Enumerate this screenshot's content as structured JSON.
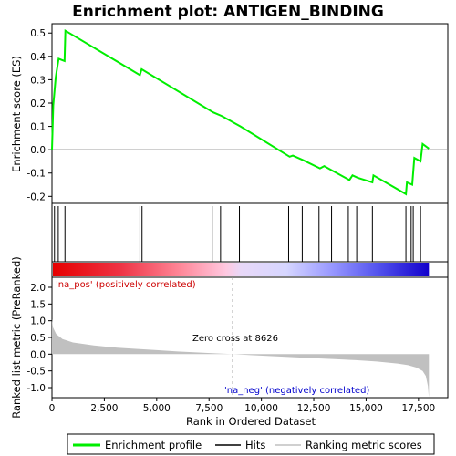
{
  "chart_data": [
    {
      "type": "line",
      "title": "Enrichment plot: ANTIGEN_BINDING",
      "ylabel": "Enrichment score (ES)",
      "xlim": [
        0,
        18900
      ],
      "ylim": [
        -0.23,
        0.54
      ],
      "yticks": [
        -0.2,
        -0.1,
        0.0,
        0.1,
        0.2,
        0.3,
        0.4,
        0.5
      ],
      "ytick_labels": [
        "-0.2",
        "-0.1",
        "0.0",
        "0.1",
        "0.2",
        "0.3",
        "0.4",
        "0.5"
      ],
      "series": [
        {
          "name": "Enrichment profile",
          "color": "#00ee00",
          "x": [
            0,
            60,
            180,
            320,
            600,
            640,
            4200,
            4280,
            7700,
            8100,
            9000,
            11350,
            11500,
            12000,
            12800,
            13000,
            13400,
            14200,
            14350,
            14600,
            15300,
            15350,
            16900,
            16950,
            17200,
            17300,
            17600,
            17700,
            18000
          ],
          "y": [
            0.0,
            0.19,
            0.31,
            0.39,
            0.38,
            0.51,
            0.32,
            0.345,
            0.16,
            0.145,
            0.1,
            -0.03,
            -0.025,
            -0.045,
            -0.08,
            -0.07,
            -0.09,
            -0.13,
            -0.11,
            -0.12,
            -0.14,
            -0.11,
            -0.19,
            -0.14,
            -0.15,
            -0.035,
            -0.05,
            0.025,
            0.005
          ]
        }
      ]
    },
    {
      "type": "scatter",
      "series": [
        {
          "name": "Hits",
          "x": [
            120,
            300,
            620,
            4200,
            4300,
            7650,
            8050,
            8950,
            11300,
            11950,
            12750,
            13350,
            14150,
            14550,
            15300,
            16900,
            17150,
            17250,
            17600
          ]
        }
      ]
    },
    {
      "type": "area",
      "xlabel": "Rank in Ordered Dataset",
      "ylabel": "Ranked list metric (PreRanked)",
      "xlim": [
        0,
        18900
      ],
      "ylim": [
        -1.3,
        2.3
      ],
      "yticks": [
        -1.0,
        -0.5,
        0.0,
        0.5,
        1.0,
        1.5,
        2.0
      ],
      "ytick_labels": [
        "-1.0",
        "-0.5",
        "0.0",
        "0.5",
        "1.0",
        "1.5",
        "2.0"
      ],
      "xticks": [
        0,
        2500,
        5000,
        7500,
        10000,
        12500,
        15000,
        17500
      ],
      "xtick_labels": [
        "0",
        "2,500",
        "5,000",
        "7,500",
        "10,000",
        "12,500",
        "15,000",
        "17,500"
      ],
      "series": [
        {
          "name": "Ranking metric scores",
          "color": "#c0c0c0",
          "x": [
            0,
            50,
            200,
            500,
            1000,
            2000,
            3000,
            4000,
            5000,
            6000,
            7000,
            8000,
            8626,
            9500,
            10500,
            11500,
            12500,
            13500,
            14500,
            15500,
            16500,
            17000,
            17400,
            17700,
            17850,
            17950,
            18000
          ],
          "y": [
            1.05,
            0.8,
            0.6,
            0.45,
            0.35,
            0.26,
            0.2,
            0.16,
            0.12,
            0.08,
            0.05,
            0.02,
            0.0,
            -0.03,
            -0.06,
            -0.09,
            -0.12,
            -0.15,
            -0.18,
            -0.22,
            -0.28,
            -0.33,
            -0.4,
            -0.5,
            -0.65,
            -0.95,
            -1.3
          ]
        }
      ],
      "zero_cross_x": 8626,
      "annotations": {
        "zero_cross": "Zero cross at 8626",
        "pos": "'na_pos' (positively correlated)",
        "neg": "'na_neg' (negatively correlated)"
      }
    }
  ],
  "legend": {
    "placement": "bottom",
    "items": [
      {
        "label": "Enrichment profile",
        "color": "#00ee00"
      },
      {
        "label": "Hits",
        "color": "#000000"
      },
      {
        "label": "Ranking metric scores",
        "color": "#c0c0c0"
      }
    ]
  },
  "colors": {
    "pos_annotation": "#cc0000",
    "neg_annotation": "#0000cc",
    "profile": "#00ee00"
  }
}
